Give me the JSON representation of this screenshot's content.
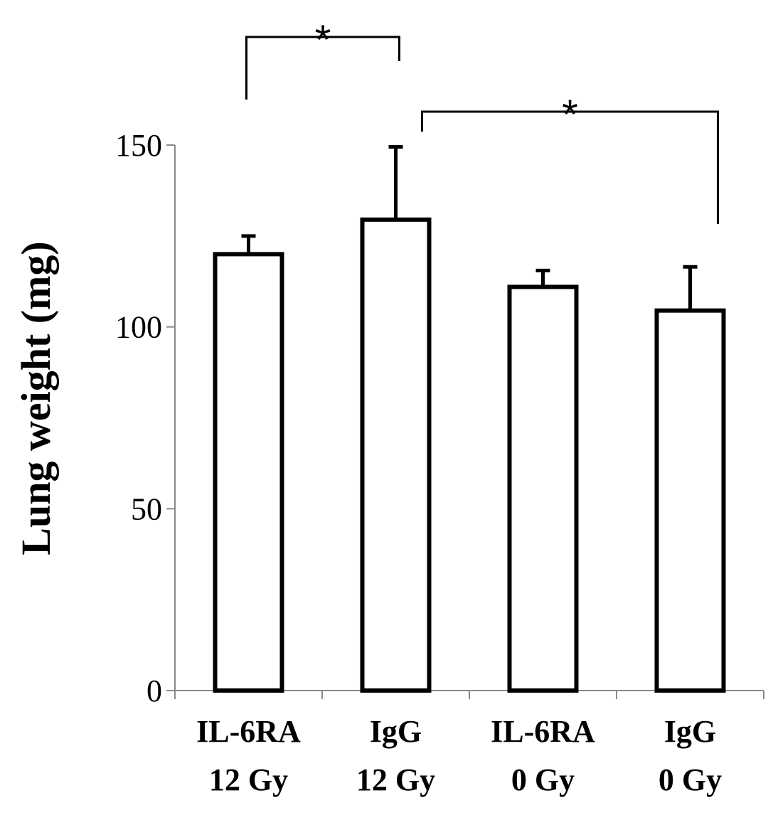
{
  "chart_data": {
    "type": "bar",
    "categories": [
      [
        "IL-6RA",
        "12 Gy"
      ],
      [
        "IgG",
        "12 Gy"
      ],
      [
        "IL-6RA",
        "0 Gy"
      ],
      [
        "IgG",
        "0 Gy"
      ]
    ],
    "values": [
      120,
      129.5,
      111,
      104.5
    ],
    "errors": [
      5,
      20,
      4.5,
      12
    ],
    "ylabel": "Lung weight (mg)",
    "xlabel": "",
    "ylim": [
      0,
      150
    ],
    "yticks": [
      0,
      50,
      100,
      150
    ],
    "grid": false,
    "significance": [
      {
        "from": 0,
        "to": 1,
        "label": "*"
      },
      {
        "from": 1,
        "to": 3,
        "label": "*"
      }
    ],
    "colors": {
      "bar_fill": "#ffffff",
      "bar_stroke": "#000000",
      "axis": "#8a8a8a"
    }
  }
}
